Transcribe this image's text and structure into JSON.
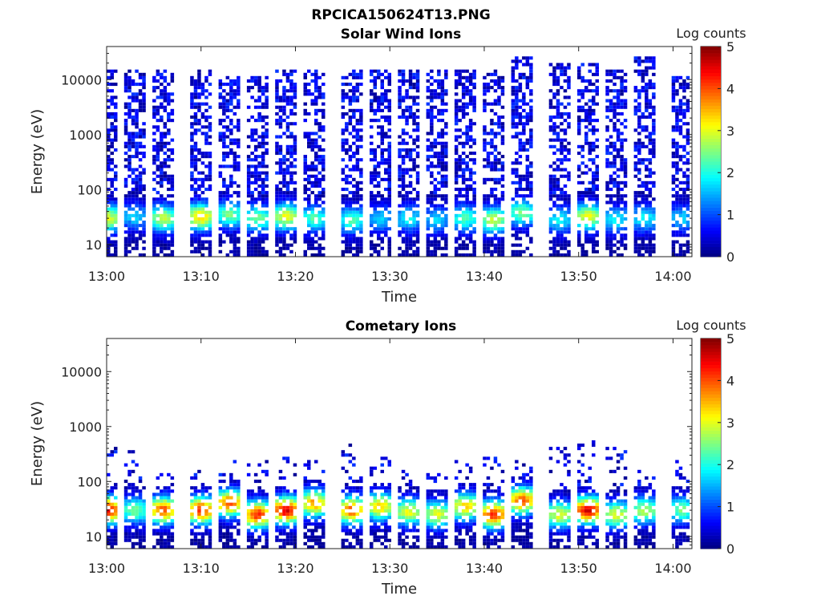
{
  "figure": {
    "title": "RPCICA150624T13.PNG"
  },
  "colorbar": {
    "label": "Log counts",
    "ticks": [
      "0",
      "1",
      "2",
      "3",
      "4",
      "5"
    ],
    "colors": [
      "#00008f",
      "#0000ff",
      "#00ffff",
      "#ffff00",
      "#ff8000",
      "#800000"
    ]
  },
  "chart_data": [
    {
      "type": "heatmap",
      "title": "Solar Wind Ions",
      "xlabel": "Time",
      "ylabel": "Energy (eV)",
      "x_ticks": [
        "13:00",
        "13:10",
        "13:20",
        "13:30",
        "13:40",
        "13:50",
        "14:00"
      ],
      "y_ticks": [
        "10",
        "100",
        "1000",
        "10000"
      ],
      "y_scale": "log",
      "xlim": [
        "13:00",
        "14:02"
      ],
      "ylim": [
        6,
        40000
      ],
      "clim": [
        0,
        5
      ],
      "sweep_times": [
        "13:00",
        "13:03",
        "13:06",
        "13:10",
        "13:13",
        "13:16",
        "13:19",
        "13:22",
        "13:26",
        "13:29",
        "13:32",
        "13:35",
        "13:38",
        "13:41",
        "13:44",
        "13:48",
        "13:51",
        "13:54",
        "13:57",
        "14:01"
      ],
      "peak_energy_eV": [
        30,
        32,
        30,
        32,
        35,
        30,
        32,
        30,
        28,
        30,
        30,
        28,
        30,
        28,
        38,
        28,
        32,
        28,
        30,
        30
      ],
      "peak_log_counts": [
        2.5,
        1.3,
        2.3,
        2.8,
        2.0,
        2.0,
        2.5,
        1.8,
        1.8,
        1.3,
        1.5,
        1.3,
        1.8,
        2.3,
        2.0,
        1.5,
        2.5,
        1.5,
        1.5,
        1.3
      ],
      "max_energy_eV": [
        20000,
        15000,
        15000,
        15000,
        12000,
        12000,
        15000,
        15000,
        15000,
        15000,
        15000,
        15000,
        15000,
        15000,
        25000,
        20000,
        20000,
        15000,
        25000,
        12000
      ]
    },
    {
      "type": "heatmap",
      "title": "Cometary Ions",
      "xlabel": "Time",
      "ylabel": "Energy (eV)",
      "x_ticks": [
        "13:00",
        "13:10",
        "13:20",
        "13:30",
        "13:40",
        "13:50",
        "14:00"
      ],
      "y_ticks": [
        "10",
        "100",
        "1000",
        "10000"
      ],
      "y_scale": "log",
      "xlim": [
        "13:00",
        "14:02"
      ],
      "ylim": [
        6,
        40000
      ],
      "clim": [
        0,
        5
      ],
      "sweep_times": [
        "13:00",
        "13:03",
        "13:06",
        "13:10",
        "13:13",
        "13:16",
        "13:19",
        "13:22",
        "13:26",
        "13:29",
        "13:32",
        "13:35",
        "13:38",
        "13:41",
        "13:44",
        "13:48",
        "13:51",
        "13:54",
        "13:57",
        "14:01"
      ],
      "peak_energy_eV": [
        30,
        30,
        30,
        30,
        40,
        25,
        30,
        40,
        30,
        35,
        28,
        25,
        35,
        25,
        45,
        25,
        30,
        25,
        30,
        30
      ],
      "peak_log_counts": [
        3.8,
        2.0,
        3.3,
        3.5,
        3.3,
        3.5,
        3.8,
        3.0,
        3.3,
        2.8,
        2.5,
        2.5,
        2.8,
        3.5,
        3.3,
        2.5,
        3.8,
        2.5,
        2.3,
        2.0
      ],
      "max_energy_eV": [
        400,
        400,
        150,
        200,
        350,
        250,
        300,
        250,
        500,
        300,
        200,
        150,
        250,
        300,
        400,
        400,
        550,
        400,
        200,
        250
      ]
    }
  ]
}
